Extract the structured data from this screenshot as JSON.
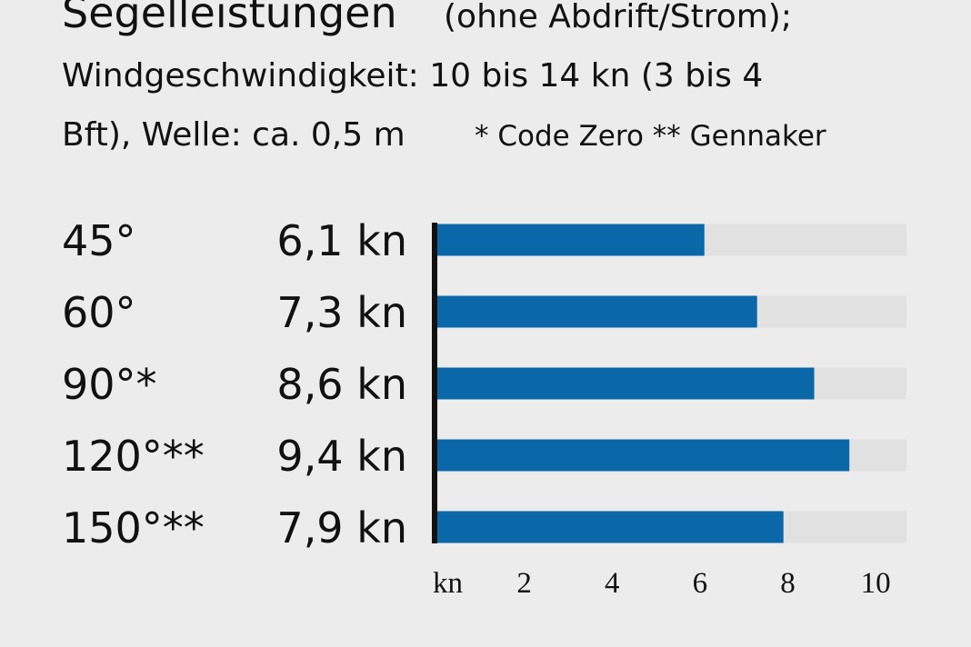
{
  "chart_data": {
    "type": "barh",
    "title": "Segelleistungen",
    "subtitle": [
      "(ohne Abdrift/Strom);",
      "Windgeschwindigkeit: 10 bis 14 kn (3 bis 4",
      "Bft), Welle: ca. 0,5 m"
    ],
    "note": "* Code Zero ** Gennaker",
    "categories": [
      "45°",
      "60°",
      "90°*",
      "120°**",
      "150°**"
    ],
    "values": [
      6.1,
      7.3,
      8.6,
      9.4,
      7.9
    ],
    "value_labels": [
      "6,1 kn",
      "7,3 kn",
      "8,6 kn",
      "9,4 kn",
      "7,9 kn"
    ],
    "color": "#0a67a8",
    "track_color": "#e1e1e1",
    "x_label": "kn",
    "xlim": [
      0,
      10.7
    ],
    "xticks": [
      2,
      4,
      6,
      8,
      10
    ]
  }
}
